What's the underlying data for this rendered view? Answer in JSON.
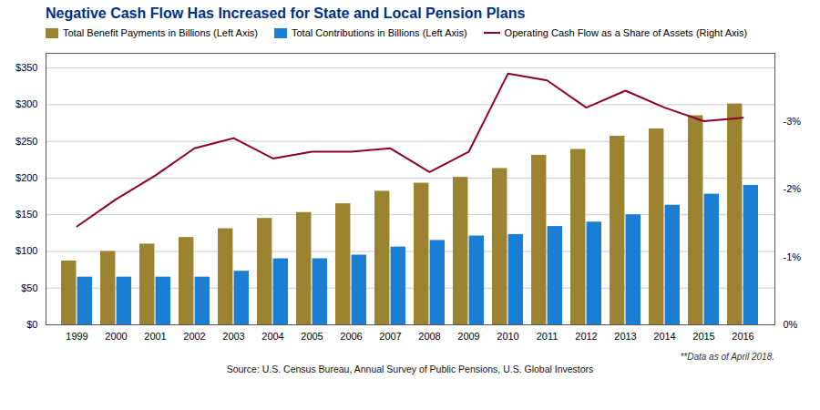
{
  "chart_data": {
    "type": "bar",
    "title": "Negative Cash Flow Has Increased for State and Local Pension Plans",
    "categories": [
      "1999",
      "2000",
      "2001",
      "2002",
      "2003",
      "2004",
      "2005",
      "2006",
      "2007",
      "2008",
      "2009",
      "2010",
      "2011",
      "2012",
      "2013",
      "2014",
      "2015",
      "2016"
    ],
    "series": [
      {
        "name": "Total Benefit Payments in Billions (Left Axis)",
        "type": "bar",
        "color": "#9c8332",
        "values": [
          87,
          100,
          110,
          119,
          131,
          145,
          153,
          165,
          182,
          193,
          201,
          213,
          231,
          239,
          257,
          267,
          285,
          301
        ]
      },
      {
        "name": "Total Contributions in Billions (Left Axis)",
        "type": "bar",
        "color": "#1a7fd4",
        "values": [
          65,
          65,
          65,
          65,
          73,
          90,
          90,
          95,
          106,
          115,
          121,
          123,
          134,
          140,
          150,
          163,
          178,
          190
        ]
      },
      {
        "name": "Operating Cash Flow as a Share of Assets (Right Axis)",
        "type": "line",
        "axis": "y2",
        "color": "#8b0030",
        "values": [
          -1.45,
          -1.85,
          -2.2,
          -2.6,
          -2.75,
          -2.45,
          -2.55,
          -2.55,
          -2.6,
          -2.25,
          -2.55,
          -3.7,
          -3.6,
          -3.2,
          -3.45,
          -3.2,
          -3.0,
          -3.05
        ]
      }
    ],
    "ylim": [
      0,
      370
    ],
    "yticks": [
      {
        "value": 0,
        "label": "$0"
      },
      {
        "value": 50,
        "label": "$50"
      },
      {
        "value": 100,
        "label": "$100"
      },
      {
        "value": 150,
        "label": "$150"
      },
      {
        "value": 200,
        "label": "$200"
      },
      {
        "value": 250,
        "label": "$250"
      },
      {
        "value": 300,
        "label": "$300"
      },
      {
        "value": 350,
        "label": "$350"
      }
    ],
    "y2lim": [
      0,
      -4.0
    ],
    "y2ticks": [
      {
        "value": 0,
        "label": "0%"
      },
      {
        "value": -1,
        "label": "-1%"
      },
      {
        "value": -2,
        "label": "-2%"
      },
      {
        "value": -3,
        "label": "-3%"
      }
    ],
    "grid": true,
    "legend": "upper left",
    "annotations": [
      "**Data as of April 2018.",
      "Source: U.S. Census Bureau, Annual Survey of Public Pensions, U.S. Global Investors"
    ]
  }
}
